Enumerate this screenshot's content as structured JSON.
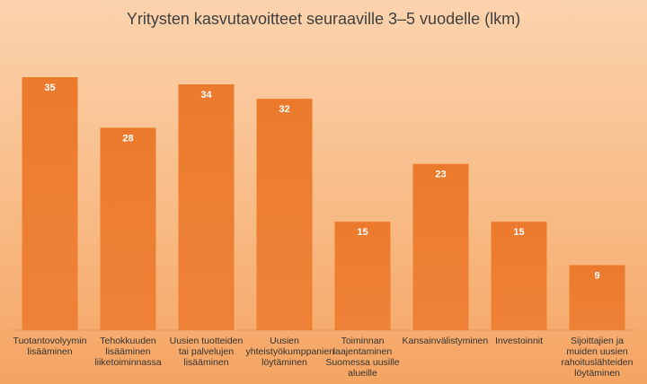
{
  "chart_data": {
    "type": "bar",
    "title": "Yritysten kasvutavoitteet seuraaville 3–5 vuodelle (lkm)",
    "categories": [
      "Tuotantovolyymin lisääminen",
      "Tehokkuuden lisääminen liiketoiminnassa",
      "Uusien tuotteiden tai palvelujen lisääminen",
      "Uusien yhteistyökumppanien löytäminen",
      "Toiminnan laajentaminen Suomessa uusille alueille",
      "Kansainvälistyminen",
      "Investoinnit",
      "Sijoittajien ja muiden uusien rahoituslähteiden löytäminen"
    ],
    "values": [
      35,
      28,
      34,
      32,
      15,
      23,
      15,
      9
    ],
    "color": "#ec7a2c",
    "ylim": [
      0,
      35
    ]
  }
}
